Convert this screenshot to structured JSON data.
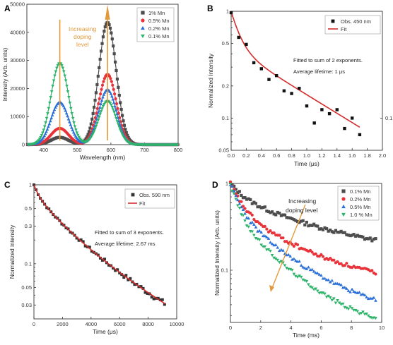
{
  "chart_data": [
    {
      "panel": "A",
      "type": "line",
      "xlabel": "Wavelength (nm)",
      "ylabel": "Intensity (Arb. units)",
      "xlim": [
        350,
        800
      ],
      "ylim": [
        0,
        50000
      ],
      "xticks": [
        400,
        500,
        600,
        700,
        800
      ],
      "yticks": [
        0,
        10000,
        20000,
        30000,
        40000,
        50000
      ],
      "grid": false,
      "legend": "top-right",
      "annotation": [
        "Increasing",
        "doping",
        "level"
      ],
      "series": [
        {
          "name": "1% Mn",
          "color": "#4d4d4d",
          "marker": "square",
          "peaks": [
            {
              "center": 448,
              "height": 2600
            },
            {
              "center": 590,
              "height": 43500
            }
          ]
        },
        {
          "name": "0.5% Mn",
          "color": "#e8333a",
          "marker": "circle",
          "peaks": [
            {
              "center": 448,
              "height": 5800
            },
            {
              "center": 590,
              "height": 25000
            }
          ]
        },
        {
          "name": "0.2% Mn",
          "color": "#2a6fd8",
          "marker": "triangle-up",
          "peaks": [
            {
              "center": 448,
              "height": 15000
            },
            {
              "center": 590,
              "height": 19500
            }
          ]
        },
        {
          "name": "0.1% Mn",
          "color": "#2eb36a",
          "marker": "triangle-down",
          "peaks": [
            {
              "center": 448,
              "height": 29000
            },
            {
              "center": 590,
              "height": 15500
            }
          ]
        }
      ]
    },
    {
      "panel": "B",
      "type": "scatter",
      "xlabel": "Time (μs)",
      "ylabel": "Normalized Intensity",
      "xlim": [
        0,
        2.0
      ],
      "ylim": [
        0.05,
        1
      ],
      "yscale": "log",
      "xticks": [
        "0.0",
        "0.2",
        "0.4",
        "0.6",
        "0.8",
        "1.0",
        "1.2",
        "1.4",
        "1.6",
        "1.8",
        "2.0"
      ],
      "yticks": [
        {
          "v": 0.05,
          "label": "0.05"
        },
        {
          "v": 0.1,
          "label": "0.1"
        },
        {
          "v": 0.2,
          "label": "0.2"
        },
        {
          "v": 0.5,
          "label": "0.5"
        },
        {
          "v": 1,
          "label": "1"
        }
      ],
      "right_ytick": {
        "v": 0.1,
        "label": "0.1"
      },
      "legend": "top-right",
      "legend_entries": [
        "Obs. 450 nm",
        "Fit"
      ],
      "annotation": [
        "Fitted to sum of 2 exponents.",
        "Average lifetime: 1 μs"
      ],
      "points": {
        "x": [
          0.0,
          0.1,
          0.2,
          0.3,
          0.4,
          0.5,
          0.6,
          0.7,
          0.8,
          0.9,
          1.0,
          1.1,
          1.2,
          1.3,
          1.4,
          1.5,
          1.6,
          1.7
        ],
        "y": [
          0.97,
          0.57,
          0.49,
          0.33,
          0.29,
          0.23,
          0.25,
          0.18,
          0.17,
          0.19,
          0.13,
          0.09,
          0.12,
          0.11,
          0.12,
          0.08,
          0.1,
          0.07
        ]
      },
      "fit": {
        "a1": 0.55,
        "tau1": 0.11,
        "a2": 0.45,
        "tau2": 1.0
      }
    },
    {
      "panel": "C",
      "type": "scatter",
      "xlabel": "Time (μs)",
      "ylabel": "Normalized intensity",
      "xlim": [
        0,
        10000
      ],
      "ylim": [
        0.02,
        1
      ],
      "yscale": "log",
      "xticks": [
        "0",
        "2000",
        "4000",
        "6000",
        "8000",
        "10000"
      ],
      "yticks": [
        {
          "v": 0.03,
          "label": "0.03"
        },
        {
          "v": 0.05,
          "label": "0.05"
        },
        {
          "v": 0.1,
          "label": "0.1"
        },
        {
          "v": 0.3,
          "label": "0.3"
        },
        {
          "v": 0.5,
          "label": "0.5"
        },
        {
          "v": 1,
          "label": "1"
        }
      ],
      "legend": "top-right",
      "legend_entries": [
        "Obs. 590 nm",
        "Fit"
      ],
      "annotation": [
        "Fitted to sum of 3 exponents.",
        "Average lifetime: 2.67 ms"
      ],
      "fit": {
        "a1": 0.25,
        "tau1": 350,
        "a2": 0.5,
        "tau2": 1800,
        "a3": 0.25,
        "tau3": 4200
      },
      "point_range": [
        0,
        9200
      ],
      "point_step": 150
    },
    {
      "panel": "D",
      "type": "scatter",
      "xlabel": "Time (ms)",
      "ylabel": "Normalized Intensity (Arb. units)",
      "xlim": [
        0,
        10
      ],
      "ylim": [
        0.025,
        1
      ],
      "yscale": "log",
      "xticks": [
        "0",
        "2",
        "4",
        "6",
        "8",
        "10"
      ],
      "yticks": [
        {
          "v": 0.1,
          "label": "0.1"
        },
        {
          "v": 1,
          "label": "1"
        }
      ],
      "legend": "top-right",
      "annotation": [
        "Increasing",
        "doping level"
      ],
      "point_range": [
        0,
        9.6
      ],
      "point_step": 0.12,
      "series": [
        {
          "name": "0.1% Mn",
          "color": "#4d4d4d",
          "marker": "square",
          "fit": {
            "a1": 0.35,
            "tau1": 0.8,
            "a2": 0.65,
            "tau2": 5.0,
            "c": 0.0
          },
          "floor": 0.14
        },
        {
          "name": "0.2% Mn",
          "color": "#e8333a",
          "marker": "circle",
          "fit": {
            "a1": 0.55,
            "tau1": 0.7,
            "a2": 0.45,
            "tau2": 3.6
          },
          "floor": 0.065
        },
        {
          "name": "0.5% Mn",
          "color": "#2a6fd8",
          "marker": "triangle-up",
          "fit": {
            "a1": 0.55,
            "tau1": 0.6,
            "a2": 0.45,
            "tau2": 2.9
          },
          "floor": 0.03
        },
        {
          "name": "1.0 % Mn",
          "color": "#2eb36a",
          "marker": "triangle-down",
          "fit": {
            "a1": 0.6,
            "tau1": 0.5,
            "a2": 0.4,
            "tau2": 2.5
          },
          "floor": 0.02
        }
      ]
    }
  ],
  "fit_color": "#d42b2b",
  "arrow_color": "#e39a3c"
}
